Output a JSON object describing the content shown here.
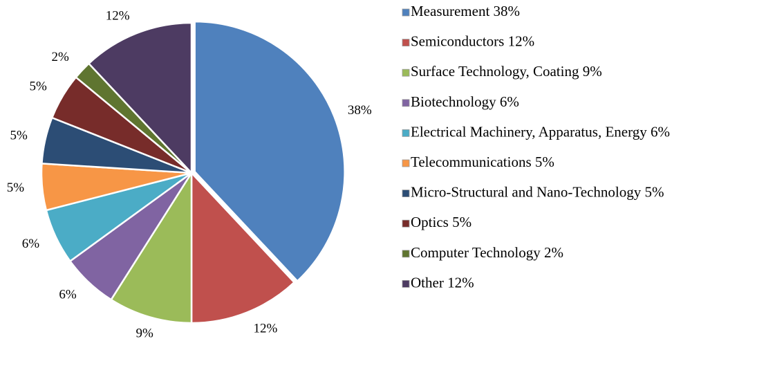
{
  "chart_data": {
    "type": "pie",
    "categories": [
      "Measurement",
      "Semiconductors",
      "Surface Technology, Coating",
      "Biotechnology",
      "Electrical Machinery, Apparatus, Energy",
      "Telecommunications",
      "Micro-Structural and Nano-Technology",
      "Optics",
      "Computer Technology",
      "Other"
    ],
    "values": [
      38,
      12,
      9,
      6,
      6,
      5,
      5,
      5,
      2,
      12
    ],
    "value_labels": [
      "38%",
      "12%",
      "9%",
      "6%",
      "6%",
      "5%",
      "5%",
      "5%",
      "2%",
      "12%"
    ],
    "colors": [
      "#4f81bd",
      "#c0504d",
      "#9bbb59",
      "#8064a2",
      "#4bacc6",
      "#f79646",
      "#2c4d75",
      "#772c2a",
      "#5f7530",
      "#4d3b62"
    ],
    "legend": "right"
  }
}
